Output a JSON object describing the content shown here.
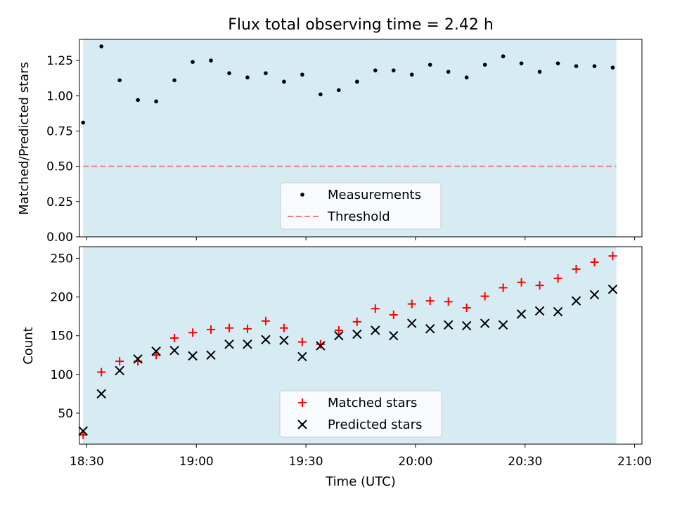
{
  "title": "Flux total observing time = 2.42 h",
  "xlabel": "Time (UTC)",
  "x_tick_labels": [
    "18:30",
    "19:00",
    "19:30",
    "20:00",
    "20:30",
    "21:00"
  ],
  "colors": {
    "shade": "#add8e6",
    "measurement": "#000000",
    "threshold": "#f08080",
    "matched": "#ff0000",
    "predicted": "#000000"
  },
  "chart_data": [
    {
      "type": "scatter",
      "title": "Flux total observing time = 2.42 h",
      "ylabel": "Matched/Predicted stars",
      "xlim": [
        "18:28",
        "21:02"
      ],
      "ylim": [
        0,
        1.4
      ],
      "y_tick_labels": [
        "0.00",
        "0.25",
        "0.50",
        "0.75",
        "1.00",
        "1.25"
      ],
      "shaded_span": [
        "18:29",
        "20:55"
      ],
      "threshold": 0.5,
      "legend": {
        "placement": "lower-center",
        "entries": [
          "Measurements",
          "Threshold"
        ]
      },
      "x": [
        "18:29",
        "18:34",
        "18:39",
        "18:44",
        "18:49",
        "18:54",
        "18:59",
        "19:04",
        "19:09",
        "19:14",
        "19:19",
        "19:24",
        "19:29",
        "19:34",
        "19:39",
        "19:44",
        "19:49",
        "19:54",
        "19:59",
        "20:04",
        "20:09",
        "20:14",
        "20:19",
        "20:24",
        "20:29",
        "20:34",
        "20:39",
        "20:44",
        "20:49",
        "20:54"
      ],
      "series": [
        {
          "name": "Measurements",
          "values": [
            0.81,
            1.35,
            1.11,
            0.97,
            0.96,
            1.11,
            1.24,
            1.25,
            1.16,
            1.13,
            1.16,
            1.1,
            1.15,
            1.01,
            1.04,
            1.1,
            1.18,
            1.18,
            1.15,
            1.22,
            1.17,
            1.13,
            1.22,
            1.28,
            1.23,
            1.17,
            1.23,
            1.21,
            1.21,
            1.2
          ]
        },
        {
          "name": "Threshold",
          "values": [
            0.5
          ]
        }
      ]
    },
    {
      "type": "scatter",
      "xlabel": "Time (UTC)",
      "ylabel": "Count",
      "xlim": [
        "18:28",
        "21:02"
      ],
      "ylim": [
        10,
        265
      ],
      "y_tick_labels": [
        "50",
        "100",
        "150",
        "200",
        "250"
      ],
      "shaded_span": [
        "18:29",
        "20:55"
      ],
      "legend": {
        "placement": "lower-center",
        "entries": [
          "Matched stars",
          "Predicted stars"
        ]
      },
      "x": [
        "18:29",
        "18:34",
        "18:39",
        "18:44",
        "18:49",
        "18:54",
        "18:59",
        "19:04",
        "19:09",
        "19:14",
        "19:19",
        "19:24",
        "19:29",
        "19:34",
        "19:39",
        "19:44",
        "19:49",
        "19:54",
        "19:59",
        "20:04",
        "20:09",
        "20:14",
        "20:19",
        "20:24",
        "20:29",
        "20:34",
        "20:39",
        "20:44",
        "20:49",
        "20:54"
      ],
      "series": [
        {
          "name": "Matched stars",
          "values": [
            22,
            103,
            117,
            117,
            125,
            147,
            154,
            158,
            160,
            159,
            169,
            160,
            142,
            139,
            157,
            168,
            185,
            177,
            191,
            195,
            194,
            186,
            201,
            212,
            219,
            215,
            224,
            236,
            245,
            253
          ]
        },
        {
          "name": "Predicted stars",
          "values": [
            27,
            75,
            105,
            120,
            130,
            131,
            124,
            125,
            139,
            139,
            145,
            144,
            123,
            137,
            150,
            152,
            157,
            150,
            166,
            159,
            164,
            163,
            166,
            164,
            178,
            182,
            181,
            195,
            203,
            210
          ]
        }
      ]
    }
  ]
}
